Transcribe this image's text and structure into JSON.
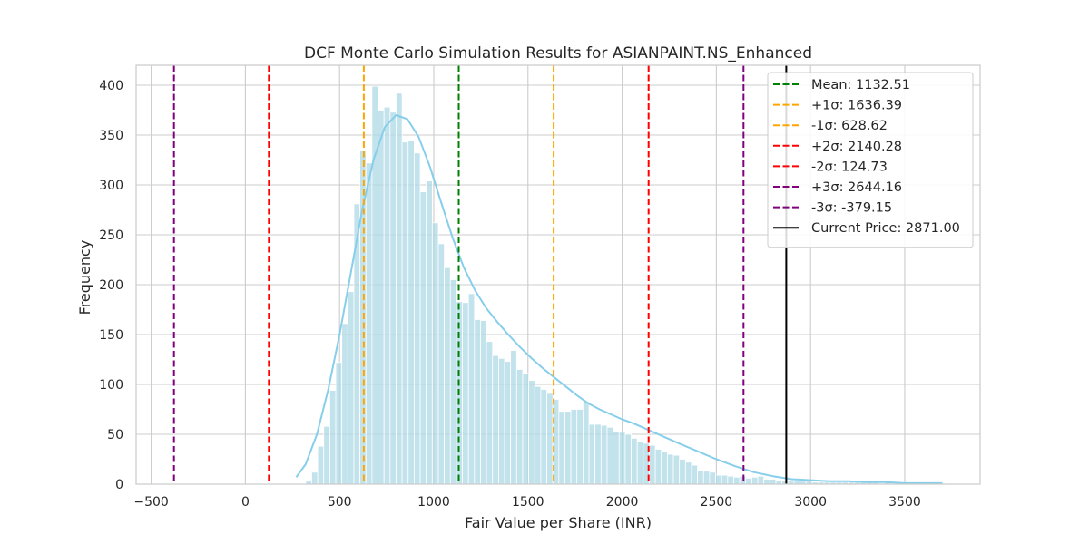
{
  "chart_data": {
    "type": "histogram",
    "title": "DCF Monte Carlo Simulation Results for ASIANPAINT.NS_Enhanced",
    "xlabel": "Fair Value per Share (INR)",
    "ylabel": "Frequency",
    "xlim": [
      -580,
      3900
    ],
    "ylim": [
      0,
      420
    ],
    "xticks": [
      -500,
      0,
      500,
      1000,
      1500,
      2000,
      2500,
      3000,
      3500
    ],
    "yticks": [
      0,
      50,
      100,
      150,
      200,
      250,
      300,
      350,
      400
    ],
    "grid": true,
    "legend_position": "top-right",
    "bin_width": 32,
    "bins": {
      "starts": [
        320,
        352,
        384,
        416,
        448,
        480,
        512,
        544,
        576,
        608,
        640,
        672,
        704,
        736,
        768,
        800,
        832,
        864,
        896,
        928,
        960,
        992,
        1024,
        1056,
        1088,
        1120,
        1152,
        1184,
        1216,
        1248,
        1280,
        1312,
        1344,
        1376,
        1408,
        1440,
        1472,
        1504,
        1536,
        1568,
        1600,
        1632,
        1664,
        1696,
        1728,
        1760,
        1792,
        1824,
        1856,
        1888,
        1920,
        1952,
        1984,
        2016,
        2048,
        2080,
        2112,
        2144,
        2176,
        2208,
        2240,
        2272,
        2304,
        2336,
        2368,
        2400,
        2432,
        2464,
        2496,
        2528,
        2560,
        2592,
        2624,
        2656,
        2688,
        2720,
        2752,
        2784,
        2816,
        2848,
        2880,
        2912,
        2944,
        2976,
        3008,
        3040,
        3072,
        3104,
        3136,
        3168,
        3200,
        3232,
        3264,
        3296,
        3328,
        3360,
        3392,
        3424,
        3456,
        3488,
        3520,
        3552,
        3584,
        3616,
        3648,
        3680
      ],
      "counts": [
        3,
        12,
        38,
        58,
        94,
        122,
        161,
        193,
        281,
        335,
        322,
        399,
        375,
        378,
        373,
        392,
        343,
        344,
        332,
        293,
        304,
        262,
        241,
        217,
        205,
        183,
        182,
        191,
        165,
        164,
        143,
        129,
        126,
        123,
        134,
        115,
        111,
        104,
        98,
        95,
        91,
        85,
        73,
        73,
        75,
        75,
        83,
        60,
        60,
        59,
        57,
        53,
        52,
        50,
        46,
        43,
        41,
        39,
        35,
        33,
        30,
        29,
        25,
        22,
        19,
        14,
        13,
        12,
        9,
        9,
        8,
        7,
        8,
        6,
        7,
        8,
        5,
        5,
        4,
        4,
        3,
        3,
        3,
        3,
        2,
        2,
        2,
        2,
        2,
        2,
        2,
        2,
        2,
        2,
        2,
        1,
        2,
        1,
        1,
        1,
        1,
        1,
        1,
        1,
        1,
        1
      ]
    },
    "kde_curve": {
      "x": [
        270,
        320,
        380,
        440,
        500,
        560,
        620,
        680,
        740,
        800,
        860,
        920,
        980,
        1040,
        1100,
        1160,
        1220,
        1280,
        1340,
        1400,
        1460,
        1520,
        1580,
        1640,
        1700,
        1760,
        1820,
        1880,
        1940,
        2000,
        2060,
        2120,
        2180,
        2240,
        2300,
        2400,
        2500,
        2600,
        2700,
        2800,
        2900,
        3000,
        3100,
        3200,
        3300,
        3400,
        3500,
        3600,
        3700
      ],
      "y": [
        7,
        20,
        50,
        95,
        150,
        212,
        275,
        325,
        358,
        370,
        366,
        348,
        318,
        282,
        247,
        217,
        194,
        176,
        162,
        149,
        137,
        126,
        116,
        107,
        98,
        89,
        81,
        75,
        70,
        65,
        61,
        56,
        51,
        46,
        41,
        33,
        25,
        18,
        12,
        8,
        5,
        4,
        3,
        3,
        2,
        2,
        1,
        1,
        1
      ]
    },
    "series": [
      {
        "name": "Mean: 1132.51",
        "x": 1132.51,
        "color": "#008000",
        "style": "dashed"
      },
      {
        "name": "+1σ: 1636.39",
        "x": 1636.39,
        "color": "#ffa500",
        "style": "dashed"
      },
      {
        "name": "-1σ: 628.62",
        "x": 628.62,
        "color": "#ffa500",
        "style": "dashed"
      },
      {
        "name": "+2σ: 2140.28",
        "x": 2140.28,
        "color": "#ff0000",
        "style": "dashed"
      },
      {
        "name": "-2σ: 124.73",
        "x": 124.73,
        "color": "#ff0000",
        "style": "dashed"
      },
      {
        "name": "+3σ: 2644.16",
        "x": 2644.16,
        "color": "#800080",
        "style": "dashed"
      },
      {
        "name": "-3σ: -379.15",
        "x": -379.15,
        "color": "#800080",
        "style": "dashed"
      },
      {
        "name": "Current Price: 2871.00",
        "x": 2871.0,
        "color": "#000000",
        "style": "solid"
      }
    ],
    "colors": {
      "bar_fill": "#add8e6",
      "kde_line": "#87ceeb",
      "grid": "#cccccc",
      "axes_edge": "#cccccc"
    }
  }
}
